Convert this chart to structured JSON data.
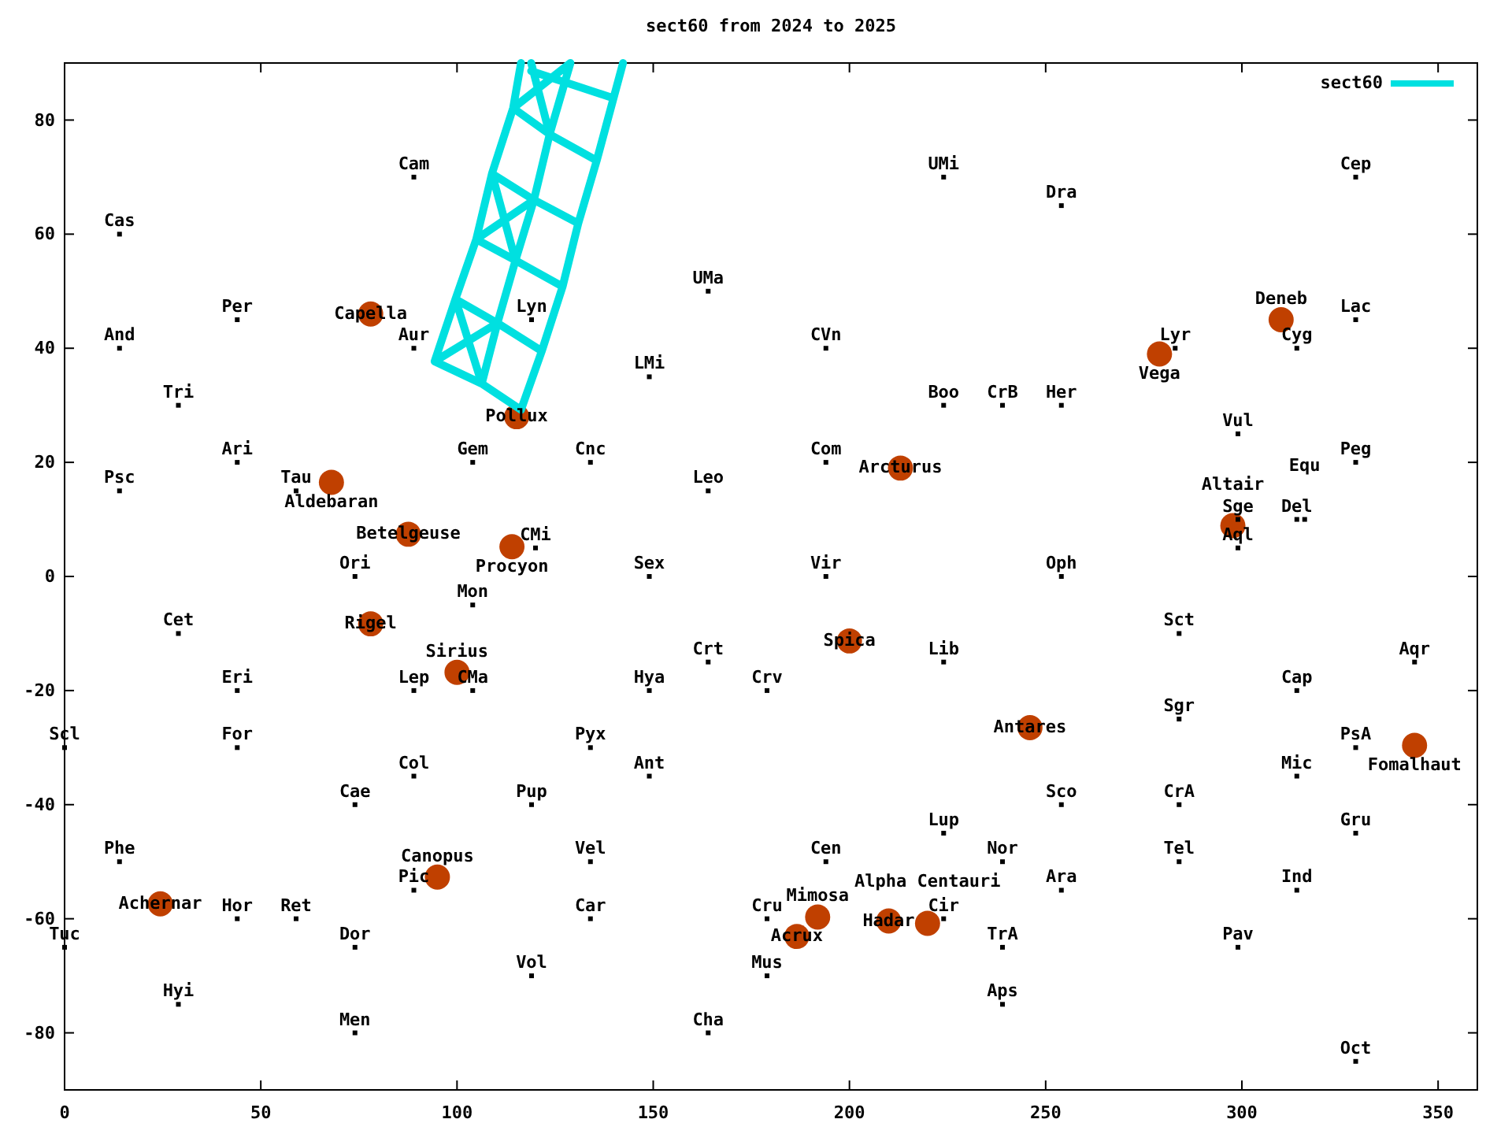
{
  "chart_data": {
    "type": "scatter",
    "title": "sect60 from 2024 to 2025",
    "xlim": [
      0,
      360
    ],
    "ylim": [
      -90,
      90
    ],
    "xticks": [
      0,
      50,
      100,
      150,
      200,
      250,
      300,
      350
    ],
    "yticks": [
      -80,
      -60,
      -40,
      -20,
      0,
      20,
      40,
      60,
      80
    ],
    "legend": "top right",
    "series": [
      {
        "type": "scatter",
        "color": "#c04000",
        "marker": "circle",
        "x": [
          78,
          68,
          87.6,
          78,
          114,
          115.2,
          100,
          95,
          24.4,
          200,
          213,
          246,
          279,
          310,
          297.7,
          344,
          186.6,
          191.9,
          210,
          219.9
        ],
        "values": [
          46,
          16.5,
          7.4,
          -8.3,
          5.2,
          28,
          -16.8,
          -52.7,
          -57.4,
          -11.3,
          19,
          -26.5,
          39,
          45,
          8.9,
          -29.6,
          -63.1,
          -59.7,
          -60.4,
          -60.8
        ],
        "value_labels": [
          "Capella",
          "Aldebaran",
          "Betelgeuse",
          "Rigel",
          "Procyon",
          "Pollux",
          "Sirius",
          "Canopus",
          "Achernar",
          "Spica",
          "Arcturus",
          "Antares",
          "Vega",
          "Deneb",
          "Altair",
          "Fomalhaut",
          "Acrux",
          "Mimosa",
          "Hadar",
          "Alpha Centauri"
        ]
      },
      {
        "type": "line",
        "name": "sect60",
        "color": "#00e0e0",
        "marker": "none",
        "x": [
          94.3,
          99.6,
          104.9,
          108.9,
          114.3,
          116.3,
          null,
          106.3,
          110.3,
          114.9,
          119.6,
          123.6,
          128.9,
          null,
          116.3,
          121.6,
          126.9,
          130.9,
          135.6,
          142.3,
          null,
          94.3,
          106.3,
          116.3,
          null,
          99.6,
          110.3,
          121.6,
          null,
          104.9,
          114.9,
          126.9,
          null,
          108.9,
          119.6,
          130.9,
          null,
          114.3,
          123.6,
          135.6,
          null,
          118.9,
          139.6,
          null,
          94.3,
          110.3,
          null,
          99.6,
          106.3,
          null,
          104.9,
          119.6,
          null,
          108.9,
          114.9,
          null,
          114.3,
          128.9,
          null,
          118.9,
          123.6
        ],
        "values": [
          37.7,
          48.6,
          59.1,
          70.6,
          82.1,
          90,
          null,
          33.8,
          44.4,
          55.4,
          66,
          77.5,
          90,
          null,
          29.2,
          39.5,
          50.8,
          61.9,
          72.9,
          90,
          null,
          37.7,
          33.8,
          29.2,
          null,
          48.6,
          44.4,
          39.5,
          null,
          59.1,
          55.4,
          50.8,
          null,
          70.6,
          66,
          61.9,
          null,
          82.1,
          77.5,
          72.9,
          null,
          88.6,
          83.9,
          null,
          37.7,
          44.4,
          null,
          48.6,
          33.8,
          null,
          59.1,
          66,
          null,
          70.6,
          55.4,
          null,
          82.1,
          90,
          null,
          90,
          77.5
        ]
      },
      {
        "marker": "square",
        "color": "#000000",
        "x": [
          14,
          14,
          29,
          14,
          44,
          44,
          89,
          89,
          119,
          104,
          59,
          74,
          29,
          44,
          0,
          44,
          89,
          104,
          104,
          89,
          74,
          119,
          14,
          44,
          59,
          74,
          89,
          0,
          29,
          74,
          119,
          134,
          134,
          134,
          149,
          149,
          149,
          134,
          164,
          149,
          164,
          120,
          164,
          179,
          194,
          194,
          194,
          224,
          254,
          224,
          239,
          254,
          254,
          224,
          254,
          224,
          239,
          254,
          239,
          239,
          194,
          179,
          179,
          164,
          224,
          283,
          314,
          329,
          329,
          299,
          329,
          299,
          314,
          316,
          299,
          284,
          284,
          314,
          344,
          329,
          314,
          329,
          284,
          284,
          314,
          299,
          329
        ],
        "values": [
          60,
          40,
          30,
          15,
          20,
          45,
          70,
          40,
          45,
          20,
          15,
          0,
          -10,
          -20,
          -30,
          -30,
          -20,
          -20,
          -5,
          -35,
          -40,
          -40,
          -50,
          -60,
          -60,
          -65,
          -55,
          -65,
          -75,
          -80,
          -70,
          -60,
          -50,
          -30,
          -35,
          -20,
          0,
          20,
          15,
          35,
          50,
          5,
          -15,
          -20,
          0,
          20,
          40,
          70,
          65,
          30,
          30,
          30,
          0,
          -15,
          -40,
          -45,
          -50,
          -55,
          -65,
          -75,
          -50,
          -60,
          -70,
          -80,
          -60,
          40,
          40,
          45,
          70,
          25,
          20,
          10,
          10,
          10,
          5,
          -10,
          -25,
          -20,
          -15,
          -30,
          -35,
          -45,
          -40,
          -50,
          -55,
          -65,
          -85
        ],
        "value_labels": [
          "Cas",
          "And",
          "Tri",
          "Psc",
          "Ari",
          "Per",
          "Cam",
          "Aur",
          "Lyn",
          "Gem",
          "Tau",
          "Ori",
          "Cet",
          "Eri",
          "Scl",
          "For",
          "Lep",
          "CMa",
          "Mon",
          "Col",
          "Cae",
          "Pup",
          "Phe",
          "Hor",
          "Ret",
          "Dor",
          "Pic",
          "Tuc",
          "Hyi",
          "Men",
          "Vol",
          "Car",
          "Vel",
          "Pyx",
          "Ant",
          "Hya",
          "Sex",
          "Cnc",
          "Leo",
          "LMi",
          "UMa",
          "CMi",
          "Crt",
          "Crv",
          "Vir",
          "Com",
          "CVn",
          "UMi",
          "Dra",
          "Boo",
          "CrB",
          "Her",
          "Oph",
          "Lib",
          "Sco",
          "Lup",
          "Nor",
          "Ara",
          "TrA",
          "Aps",
          "Cen",
          "Cru",
          "Mus",
          "Cha",
          "Cir",
          "Lyr",
          "Cyg",
          "Lac",
          "Cep",
          "Vul",
          "Peg",
          "Sge",
          "Del",
          "Equ",
          "Aql",
          "Sct",
          "Sgr",
          "Cap",
          "Aqr",
          "PsA",
          "Mic",
          "Gru",
          "CrA",
          "Tel",
          "Ind",
          "Pav",
          "Oct"
        ]
      }
    ]
  }
}
